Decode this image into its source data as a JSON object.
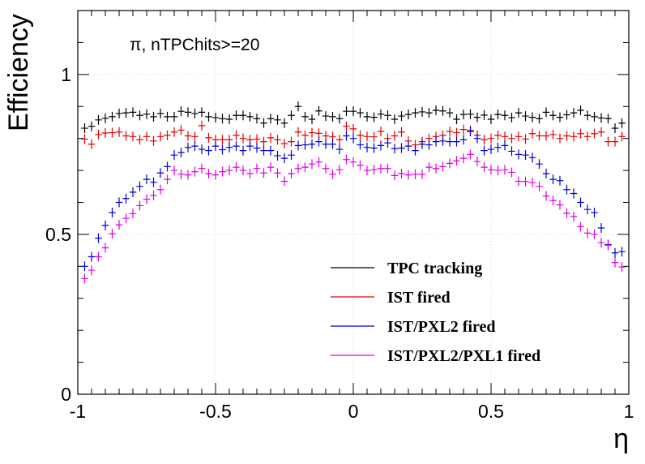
{
  "chart_data": {
    "type": "scatter",
    "title": "",
    "annotation": "π, nTPChits>=20",
    "xlabel": "η",
    "ylabel": "Efficiency",
    "xlim": [
      -1,
      1
    ],
    "ylim": [
      0,
      1.2
    ],
    "xticks": [
      -1,
      -0.5,
      0,
      0.5,
      1
    ],
    "xtick_labels": [
      "-1",
      "-0.5",
      "0",
      "0.5",
      "1"
    ],
    "yticks": [
      0,
      0.5,
      1
    ],
    "ytick_labels": [
      "0",
      "0.5",
      "1"
    ],
    "grid": true,
    "legend_position": "bottom-right",
    "x": [
      -0.975,
      -0.95,
      -0.925,
      -0.9,
      -0.875,
      -0.85,
      -0.825,
      -0.8,
      -0.775,
      -0.75,
      -0.725,
      -0.7,
      -0.675,
      -0.65,
      -0.625,
      -0.6,
      -0.575,
      -0.55,
      -0.525,
      -0.5,
      -0.475,
      -0.45,
      -0.425,
      -0.4,
      -0.375,
      -0.35,
      -0.325,
      -0.3,
      -0.275,
      -0.25,
      -0.225,
      -0.2,
      -0.175,
      -0.15,
      -0.125,
      -0.1,
      -0.075,
      -0.05,
      -0.025,
      0,
      0.025,
      0.05,
      0.075,
      0.1,
      0.125,
      0.15,
      0.175,
      0.2,
      0.225,
      0.25,
      0.275,
      0.3,
      0.325,
      0.35,
      0.375,
      0.4,
      0.425,
      0.45,
      0.475,
      0.5,
      0.525,
      0.55,
      0.575,
      0.6,
      0.625,
      0.65,
      0.675,
      0.7,
      0.725,
      0.75,
      0.775,
      0.8,
      0.825,
      0.85,
      0.875,
      0.9,
      0.925,
      0.95,
      0.975
    ],
    "series": [
      {
        "name": "TPC tracking",
        "color": "#000000",
        "values": [
          0.832,
          0.838,
          0.858,
          0.863,
          0.868,
          0.878,
          0.88,
          0.882,
          0.872,
          0.876,
          0.868,
          0.878,
          0.868,
          0.868,
          0.885,
          0.882,
          0.878,
          0.882,
          0.868,
          0.865,
          0.862,
          0.86,
          0.872,
          0.872,
          0.868,
          0.862,
          0.848,
          0.862,
          0.858,
          0.848,
          0.872,
          0.9,
          0.868,
          0.86,
          0.886,
          0.87,
          0.868,
          0.862,
          0.885,
          0.885,
          0.88,
          0.868,
          0.866,
          0.876,
          0.872,
          0.86,
          0.87,
          0.875,
          0.88,
          0.883,
          0.88,
          0.888,
          0.886,
          0.88,
          0.86,
          0.875,
          0.876,
          0.866,
          0.873,
          0.86,
          0.875,
          0.872,
          0.865,
          0.88,
          0.87,
          0.866,
          0.862,
          0.882,
          0.872,
          0.866,
          0.874,
          0.88,
          0.888,
          0.872,
          0.868,
          0.864,
          0.862,
          0.832,
          0.848
        ]
      },
      {
        "name": "IST fired",
        "color": "#e60000",
        "values": [
          0.798,
          0.782,
          0.812,
          0.817,
          0.818,
          0.82,
          0.808,
          0.806,
          0.796,
          0.806,
          0.792,
          0.806,
          0.81,
          0.82,
          0.826,
          0.808,
          0.806,
          0.84,
          0.802,
          0.796,
          0.796,
          0.796,
          0.81,
          0.8,
          0.796,
          0.798,
          0.79,
          0.802,
          0.796,
          0.784,
          0.79,
          0.82,
          0.81,
          0.818,
          0.816,
          0.808,
          0.805,
          0.796,
          0.838,
          0.83,
          0.81,
          0.806,
          0.805,
          0.822,
          0.8,
          0.808,
          0.82,
          0.792,
          0.78,
          0.79,
          0.8,
          0.806,
          0.81,
          0.822,
          0.818,
          0.828,
          0.825,
          0.81,
          0.796,
          0.8,
          0.81,
          0.806,
          0.8,
          0.806,
          0.798,
          0.815,
          0.808,
          0.808,
          0.812,
          0.8,
          0.808,
          0.806,
          0.815,
          0.806,
          0.815,
          0.82,
          0.79,
          0.79,
          0.806
        ]
      },
      {
        "name": "IST/PXL2 fired",
        "color": "#0000d8",
        "values": [
          0.4,
          0.43,
          0.488,
          0.528,
          0.568,
          0.6,
          0.612,
          0.632,
          0.65,
          0.672,
          0.663,
          0.692,
          0.712,
          0.748,
          0.756,
          0.772,
          0.776,
          0.766,
          0.762,
          0.776,
          0.765,
          0.772,
          0.776,
          0.762,
          0.776,
          0.77,
          0.762,
          0.762,
          0.746,
          0.738,
          0.748,
          0.778,
          0.78,
          0.782,
          0.79,
          0.782,
          0.782,
          0.766,
          0.808,
          0.8,
          0.78,
          0.772,
          0.77,
          0.778,
          0.786,
          0.768,
          0.77,
          0.776,
          0.762,
          0.782,
          0.78,
          0.79,
          0.792,
          0.79,
          0.79,
          0.796,
          0.822,
          0.8,
          0.762,
          0.766,
          0.772,
          0.778,
          0.76,
          0.75,
          0.748,
          0.74,
          0.72,
          0.69,
          0.672,
          0.668,
          0.64,
          0.628,
          0.6,
          0.578,
          0.568,
          0.52,
          0.468,
          0.442,
          0.446
        ]
      },
      {
        "name": "IST/PXL2/PXL1 fired",
        "color": "#e000e0",
        "values": [
          0.362,
          0.388,
          0.43,
          0.458,
          0.502,
          0.53,
          0.55,
          0.565,
          0.59,
          0.61,
          0.622,
          0.64,
          0.672,
          0.7,
          0.688,
          0.686,
          0.696,
          0.706,
          0.69,
          0.686,
          0.696,
          0.7,
          0.71,
          0.7,
          0.69,
          0.706,
          0.692,
          0.71,
          0.692,
          0.666,
          0.69,
          0.706,
          0.71,
          0.72,
          0.726,
          0.706,
          0.688,
          0.702,
          0.734,
          0.726,
          0.716,
          0.7,
          0.702,
          0.706,
          0.706,
          0.684,
          0.69,
          0.686,
          0.688,
          0.688,
          0.71,
          0.706,
          0.712,
          0.722,
          0.73,
          0.738,
          0.75,
          0.728,
          0.71,
          0.702,
          0.7,
          0.702,
          0.694,
          0.666,
          0.665,
          0.662,
          0.65,
          0.62,
          0.606,
          0.592,
          0.566,
          0.556,
          0.524,
          0.504,
          0.5,
          0.474,
          0.466,
          0.412,
          0.398
        ]
      }
    ]
  }
}
